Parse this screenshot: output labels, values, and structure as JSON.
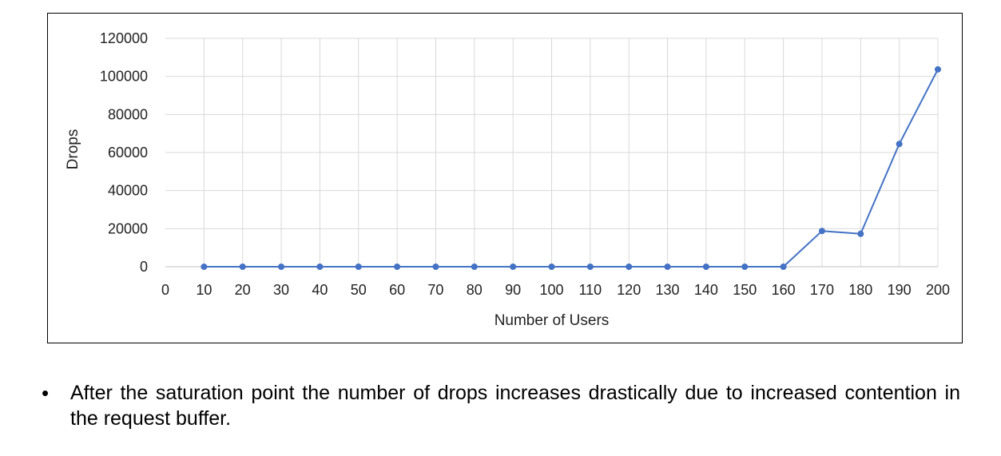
{
  "chart_data": {
    "type": "line",
    "xlabel": "Number of Users",
    "ylabel": "Drops",
    "x_ticks": [
      0,
      10,
      20,
      30,
      40,
      50,
      60,
      70,
      80,
      90,
      100,
      110,
      120,
      130,
      140,
      150,
      160,
      170,
      180,
      190,
      200
    ],
    "y_ticks": [
      0,
      20000,
      40000,
      60000,
      80000,
      100000,
      120000
    ],
    "xlim": [
      0,
      200
    ],
    "ylim": [
      0,
      120000
    ],
    "grid": true,
    "series": [
      {
        "x": [
          10,
          20,
          30,
          40,
          50,
          60,
          70,
          80,
          90,
          100,
          110,
          120,
          130,
          140,
          150,
          160,
          170,
          180,
          190,
          200
        ],
        "values": [
          0,
          0,
          0,
          0,
          0,
          0,
          0,
          0,
          0,
          0,
          0,
          0,
          0,
          0,
          0,
          0,
          18800,
          17300,
          64500,
          103700
        ],
        "color": "#4472c4"
      }
    ]
  },
  "note": {
    "bullet": "•",
    "text": "After the saturation point the number of drops increases drastically due to increased contention in the request buffer."
  }
}
